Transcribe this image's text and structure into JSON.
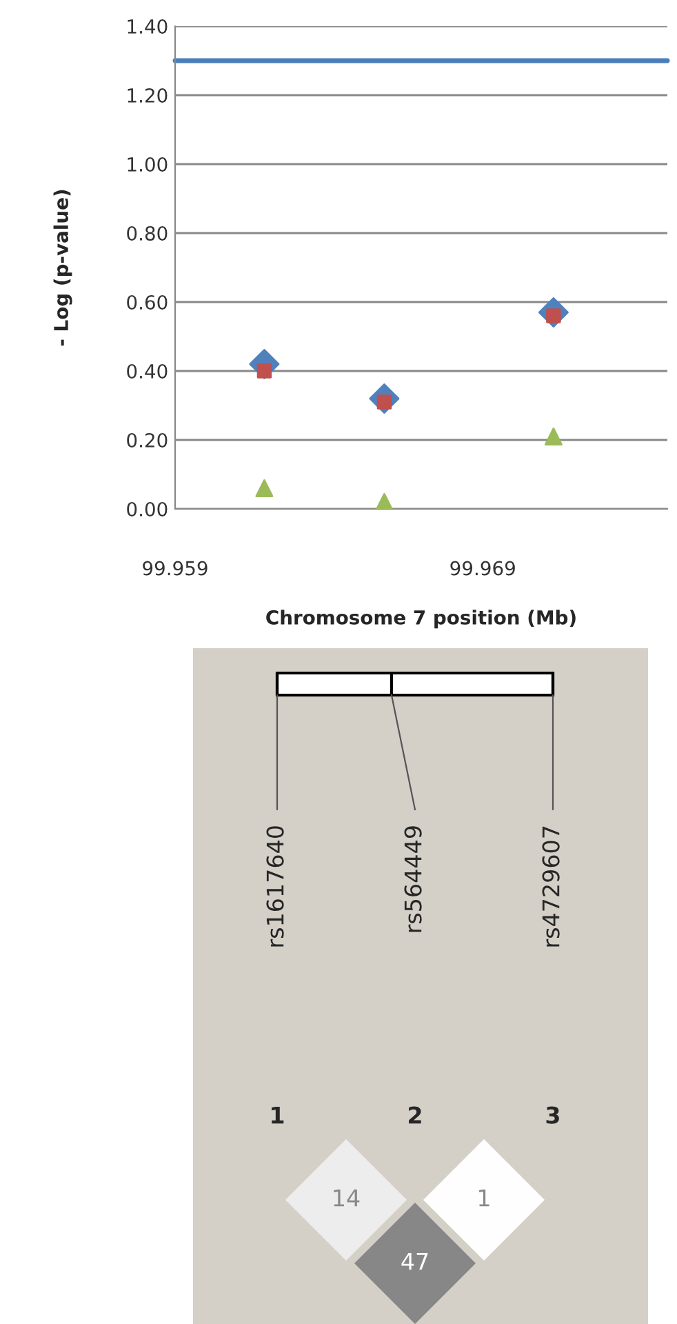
{
  "chart_data": [
    {
      "type": "scatter",
      "xlabel": "Chromosome 7 position (Mb)",
      "ylabel": "- Log (p-value)",
      "series": [
        {
          "color": "#4f81bd",
          "marker": "diamond",
          "x": [
            99.9619,
            99.9658,
            99.9713
          ],
          "values": [
            0.42,
            0.32,
            0.57
          ]
        },
        {
          "color": "#c0504d",
          "marker": "square",
          "x": [
            99.9619,
            99.9658,
            99.9713
          ],
          "values": [
            0.4,
            0.31,
            0.56
          ]
        },
        {
          "color": "#9bbb59",
          "marker": "triangle",
          "x": [
            99.9619,
            99.9658,
            99.9713
          ],
          "values": [
            0.06,
            0.02,
            0.21
          ]
        }
      ],
      "xlim": [
        99.959,
        99.975
      ],
      "xticks": [
        99.959,
        99.969
      ],
      "ylim": [
        0,
        1.4
      ],
      "yticks": [
        {
          "value": 0,
          "label": "0.00"
        },
        {
          "value": 0.2,
          "label": "0.20"
        },
        {
          "value": 0.4,
          "label": "0.40"
        },
        {
          "value": 0.6,
          "label": "0.60"
        },
        {
          "value": 0.8,
          "label": "0.80"
        },
        {
          "value": 1.0,
          "label": "1.00"
        },
        {
          "value": 1.2,
          "label": "1.20"
        },
        {
          "value": 1.4,
          "label": "1.40"
        }
      ],
      "ref_lines": [
        {
          "axis": "y",
          "value": 1.3,
          "color": "#4a7ebb"
        }
      ],
      "grid": "y",
      "legend": false
    },
    {
      "type": "other",
      "categories": [
        "rs1617640",
        "rs564449",
        "rs4729607"
      ],
      "annotations": [
        "1",
        "2",
        "3"
      ],
      "values": [
        14,
        47,
        1
      ],
      "data_labels": true
    }
  ]
}
